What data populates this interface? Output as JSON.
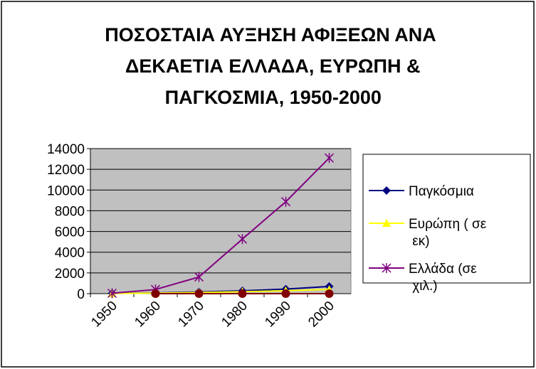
{
  "chart_data": {
    "type": "line",
    "title": "ΠΟΣΟΣΤΑΙΑ ΑΥΞΗΣΗ ΑΦΙΞΕΩΝ ΑΝΑ ΔΕΚΑΕΤΙΑ ΕΛΛΑΔΑ, ΕΥΡΩΠΗ & ΠΑΓΚΟΣΜΙΑ, 1950-2000",
    "categories": [
      "1950",
      "1960",
      "1970",
      "1980",
      "1990",
      "2000"
    ],
    "series": [
      {
        "name": "Παγκόσμια",
        "color": "#000080",
        "marker": "diamond",
        "values": [
          25,
          69,
          166,
          278,
          439,
          698
        ]
      },
      {
        "name": "Ευρώπη ( σε εκ)",
        "color": "#ffff00",
        "marker": "triangle",
        "values": [
          17,
          50,
          113,
          186,
          282,
          403
        ]
      },
      {
        "name": "Ελλάδα (σε χιλ.)",
        "color": "#800080",
        "marker": "star",
        "values": [
          33,
          399,
          1609,
          5271,
          8873,
          13096
        ]
      },
      {
        "color": "#800000",
        "marker": "circle",
        "values": [
          null,
          0,
          0,
          0,
          0,
          0
        ]
      }
    ],
    "ylim": [
      0,
      14000
    ],
    "yticks": [
      0,
      2000,
      4000,
      6000,
      8000,
      10000,
      12000,
      14000
    ],
    "grid": true,
    "legend": "right",
    "plot_background": "#c0c0c0"
  }
}
